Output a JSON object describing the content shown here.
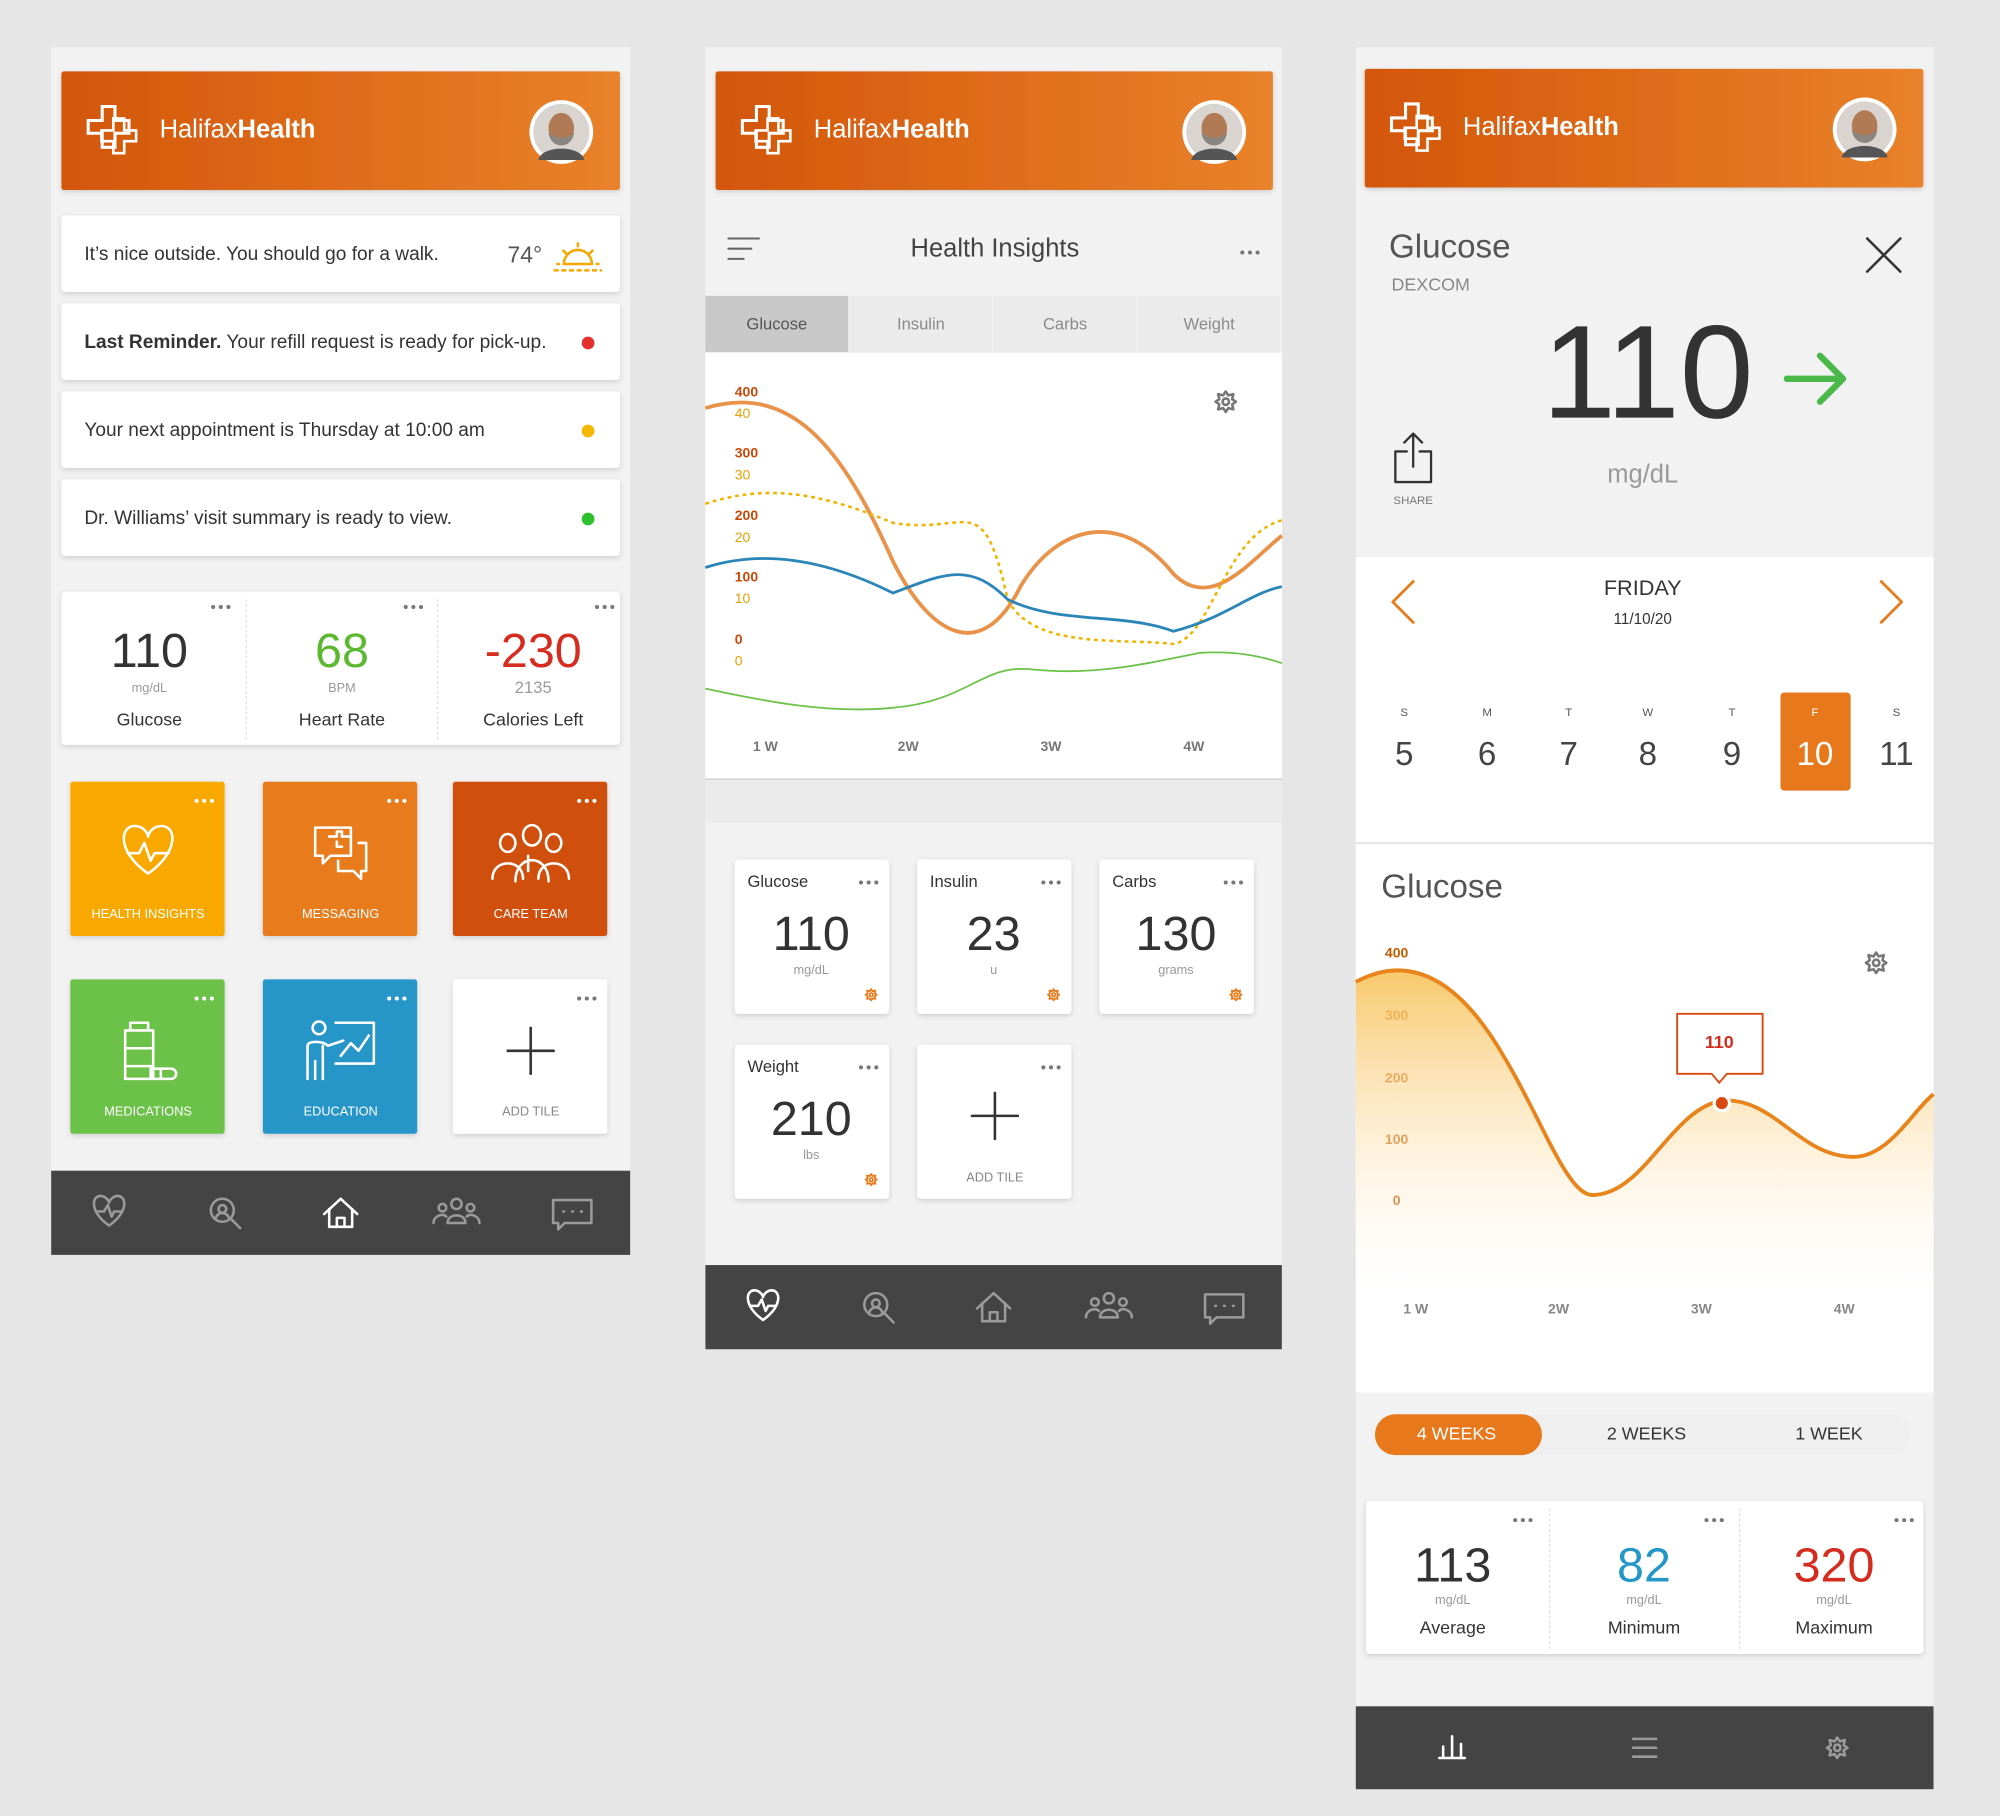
{
  "brand": {
    "light": "Halifax",
    "bold": "Health"
  },
  "home": {
    "notices": [
      {
        "text": "It’s nice outside. You should go for a walk.",
        "temperature": "74°"
      },
      {
        "bold": "Last Reminder.",
        "text": "Your refill request is ready for pick-up."
      },
      {
        "text": "Your next appointment is Thursday at 10:00 am"
      },
      {
        "text": "Dr. Williams’ visit summary is ready to view."
      }
    ],
    "stats": [
      {
        "value": 110,
        "unit": "mg/dL",
        "label": "Glucose"
      },
      {
        "value": 68,
        "unit": "BPM",
        "label": "Heart Rate"
      },
      {
        "value": -230,
        "unit": 2135,
        "label": "Calories Left"
      }
    ],
    "tiles": [
      "HEALTH INSIGHTS",
      "MESSAGING",
      "CARE TEAM",
      "MEDICATIONS",
      "EDUCATION",
      "ADD TILE"
    ]
  },
  "insights": {
    "title": "Health Insights",
    "tabs": [
      "Glucose",
      "Insulin",
      "Carbs",
      "Weight"
    ],
    "yticks_primary": [
      400,
      300,
      200,
      100,
      0
    ],
    "yticks_secondary": [
      40,
      30,
      20,
      10,
      0
    ],
    "xticks": [
      "1 W",
      "2W",
      "3W",
      "4W"
    ],
    "cards": [
      {
        "name": "Glucose",
        "value": 110,
        "unit": "mg/dL"
      },
      {
        "name": "Insulin",
        "value": 23,
        "unit": "u"
      },
      {
        "name": "Carbs",
        "value": 130,
        "unit": "grams"
      },
      {
        "name": "Weight",
        "value": 210,
        "unit": "lbs"
      }
    ],
    "add_tile": "ADD TILE"
  },
  "detail": {
    "title": "Glucose",
    "source": "DEXCOM",
    "value": 110,
    "unit": "mg/dL",
    "share": "SHARE",
    "day": "FRIDAY",
    "date": "11/10/20",
    "week": [
      {
        "letter": "S",
        "day": 5
      },
      {
        "letter": "M",
        "day": 6
      },
      {
        "letter": "T",
        "day": 7
      },
      {
        "letter": "W",
        "day": 8
      },
      {
        "letter": "T",
        "day": 9
      },
      {
        "letter": "F",
        "day": 10
      },
      {
        "letter": "S",
        "day": 11
      }
    ],
    "chart_title": "Glucose",
    "yticks": [
      400,
      300,
      200,
      100,
      0
    ],
    "xticks": [
      "1 W",
      "2W",
      "3W",
      "4W"
    ],
    "marker": 110,
    "ranges": [
      "4 WEEKS",
      "2 WEEKS",
      "1 WEEK"
    ],
    "stats": [
      {
        "value": 113,
        "unit": "mg/dL",
        "label": "Average"
      },
      {
        "value": 82,
        "unit": "mg/dL",
        "label": "Minimum"
      },
      {
        "value": 320,
        "unit": "mg/dL",
        "label": "Maximum"
      }
    ]
  }
}
